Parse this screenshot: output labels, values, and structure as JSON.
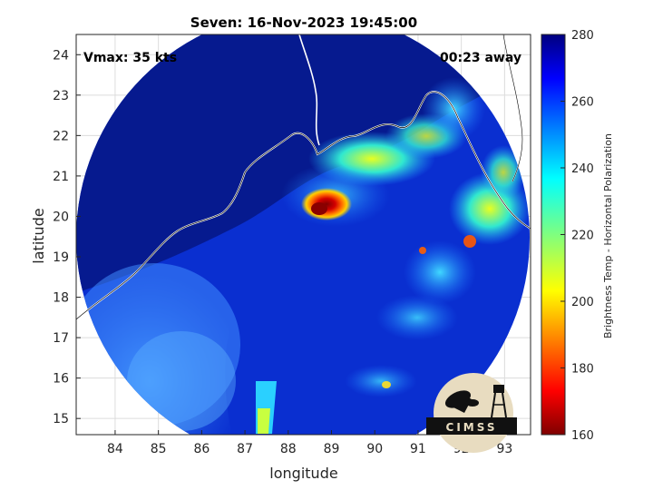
{
  "title": "Seven: 16-Nov-2023 19:45:00",
  "annotations": {
    "vmax": "Vmax: 35 kts",
    "time_away": "00:23 away"
  },
  "map": {
    "type": "microwave brightness temperature map",
    "xlabel": "longitude",
    "ylabel": "latitude",
    "xlim": [
      83.1,
      93.6
    ],
    "ylim": [
      14.6,
      24.5
    ],
    "xticks": [
      "84",
      "85",
      "86",
      "87",
      "88",
      "89",
      "90",
      "91",
      "92",
      "93"
    ],
    "yticks": [
      "15",
      "16",
      "17",
      "18",
      "19",
      "20",
      "21",
      "22",
      "23",
      "24"
    ],
    "grid": true,
    "storm_center": {
      "lon": 88.6,
      "lat": 20.2
    },
    "cold_core_min_temp": 160
  },
  "colorbar": {
    "label": "Brightness Temp - Horizontal Polarization",
    "range": [
      160,
      280
    ],
    "ticks": [
      "280",
      "260",
      "240",
      "220",
      "200",
      "180",
      "160"
    ],
    "colormap": "jet"
  },
  "logo": {
    "text": "CIMSS"
  }
}
